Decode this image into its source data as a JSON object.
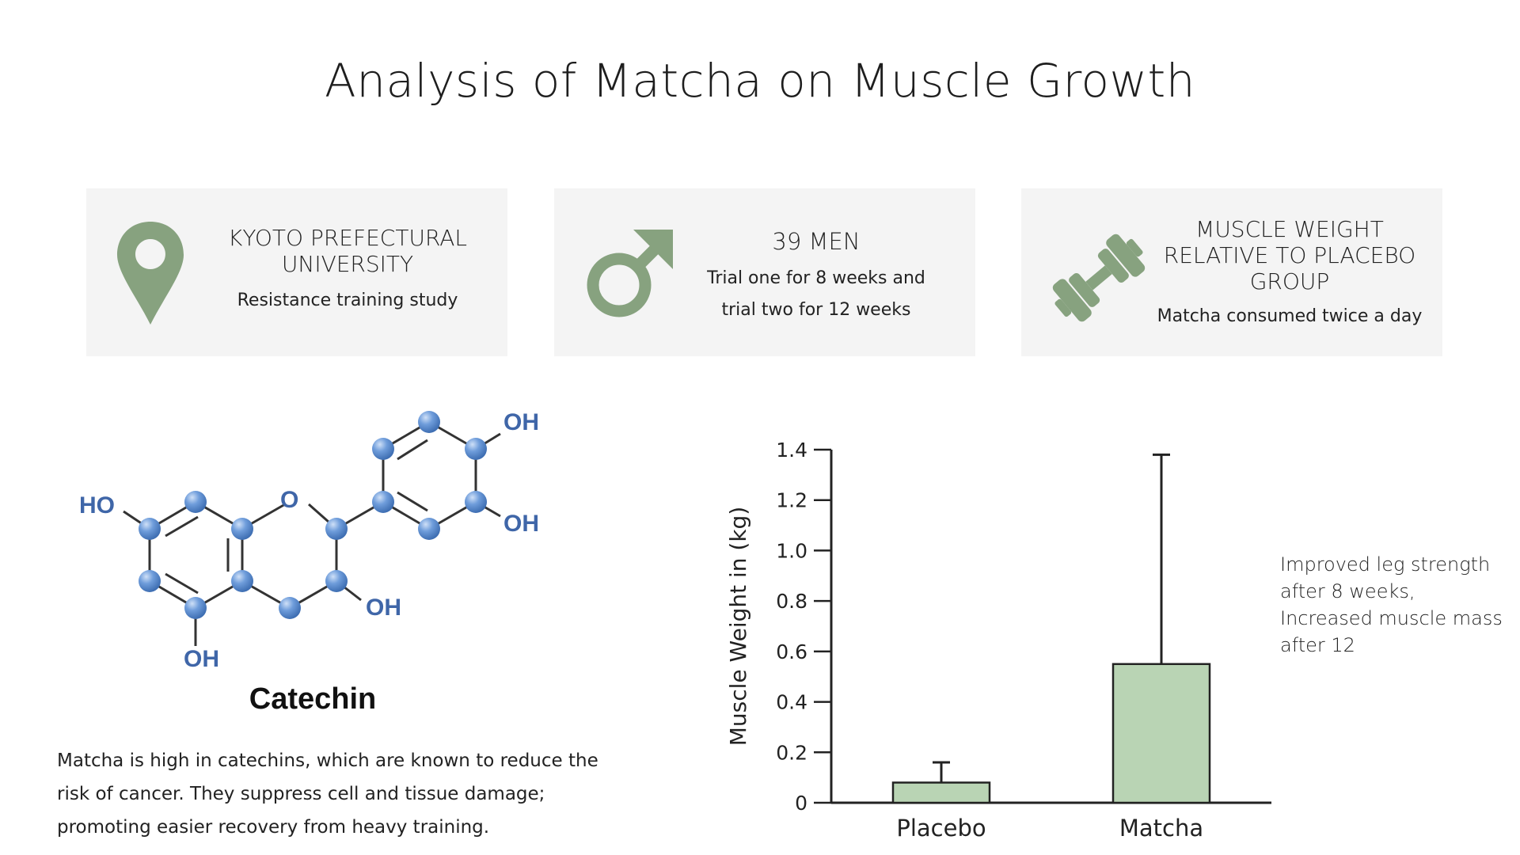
{
  "title": "Analysis of Matcha on Muscle Growth",
  "colors": {
    "card_bg": "#f4f4f4",
    "icon_green": "#87a27f",
    "bar_fill": "#b9d4b4",
    "molecule_atom": "#5b8fd0",
    "molecule_label": "#3f66a8"
  },
  "cards": [
    {
      "icon": "map-pin-icon",
      "heading": "KYOTO PREFECTURAL UNIVERSITY",
      "sub": "Resistance training study"
    },
    {
      "icon": "male-symbol-icon",
      "heading": "39 MEN",
      "sub": "Trial one for 8 weeks and trial two for 12 weeks"
    },
    {
      "icon": "dumbbell-icon",
      "heading": "MUSCLE WEIGHT RELATIVE TO PLACEBO GROUP",
      "sub": "Matcha consumed twice a day"
    }
  ],
  "molecule": {
    "name": "Catechin",
    "labels": {
      "ho_left": "HO",
      "o_ring": "O",
      "oh_top_right": "OH",
      "oh_right": "OH",
      "oh_mid": "OH",
      "oh_bottom": "OH"
    }
  },
  "body_text": "Matcha is high in catechins, which are known to reduce the risk of cancer. They suppress cell and tissue damage; promoting easier recovery from heavy training.",
  "annotation": "Improved leg strength after 8 weeks, Increased muscle mass after 12",
  "chart_data": {
    "type": "bar",
    "categories": [
      "Placebo",
      "Matcha"
    ],
    "values": [
      0.08,
      0.55
    ],
    "error_upper": [
      0.16,
      1.38
    ],
    "ylabel": "Muscle Weight in (kg)",
    "xlabel": "",
    "ylim": [
      0,
      1.4
    ],
    "yticks": [
      "0",
      "0.2",
      "0.4",
      "0.6",
      "0.8",
      "1.0",
      "1.2",
      "1.4"
    ],
    "grid": false
  }
}
